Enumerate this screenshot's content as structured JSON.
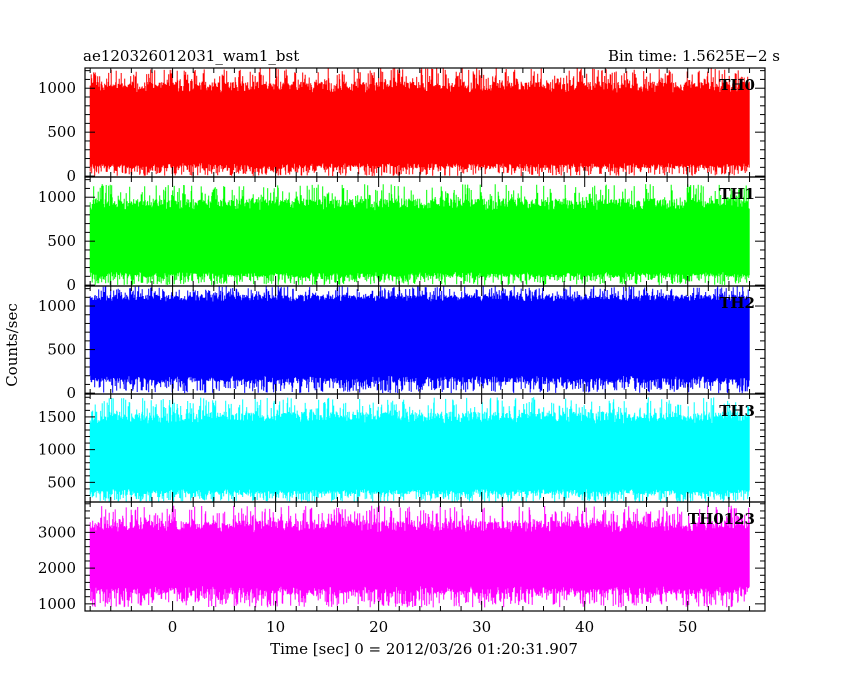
{
  "header": {
    "title": "ae120326012031_wam1_bst",
    "bin_time": "Bin time: 1.5625E−2 s"
  },
  "chart_data": {
    "type": "line",
    "title": "ae120326012031_wam1_bst",
    "xlabel": "Time [sec] 0 = 2012/03/26 01:20:31.907",
    "ylabel": "Counts/sec",
    "xlim": [
      -8.5,
      57.5
    ],
    "data_x_range": [
      -8.0,
      56.0
    ],
    "x_ticks": [
      0,
      10,
      20,
      30,
      40,
      50
    ],
    "panels": [
      {
        "name": "TH0",
        "color": "#ff0000",
        "ylim": [
          -10,
          1230
        ],
        "y_ticks": [
          0,
          500,
          1000
        ],
        "band": [
          150,
          950
        ],
        "spike_range": [
          0,
          1230
        ]
      },
      {
        "name": "TH1",
        "color": "#00ff00",
        "ylim": [
          -10,
          1230
        ],
        "y_ticks": [
          0,
          500,
          1000
        ],
        "band": [
          150,
          850
        ],
        "spike_range": [
          0,
          1150
        ]
      },
      {
        "name": "TH2",
        "color": "#0000ff",
        "ylim": [
          -10,
          1230
        ],
        "y_ticks": [
          0,
          500,
          1000
        ],
        "band": [
          200,
          1050
        ],
        "spike_range": [
          0,
          1230
        ]
      },
      {
        "name": "TH3",
        "color": "#00ffff",
        "ylim": [
          200,
          1850
        ],
        "y_ticks": [
          500,
          1000,
          1500
        ],
        "band": [
          400,
          1400
        ],
        "spike_range": [
          200,
          1800
        ]
      },
      {
        "name": "TH0123",
        "color": "#ff00ff",
        "ylim": [
          800,
          3850
        ],
        "y_ticks": [
          1000,
          2000,
          3000
        ],
        "band": [
          1500,
          3000
        ],
        "spike_range": [
          900,
          3750
        ]
      }
    ]
  }
}
